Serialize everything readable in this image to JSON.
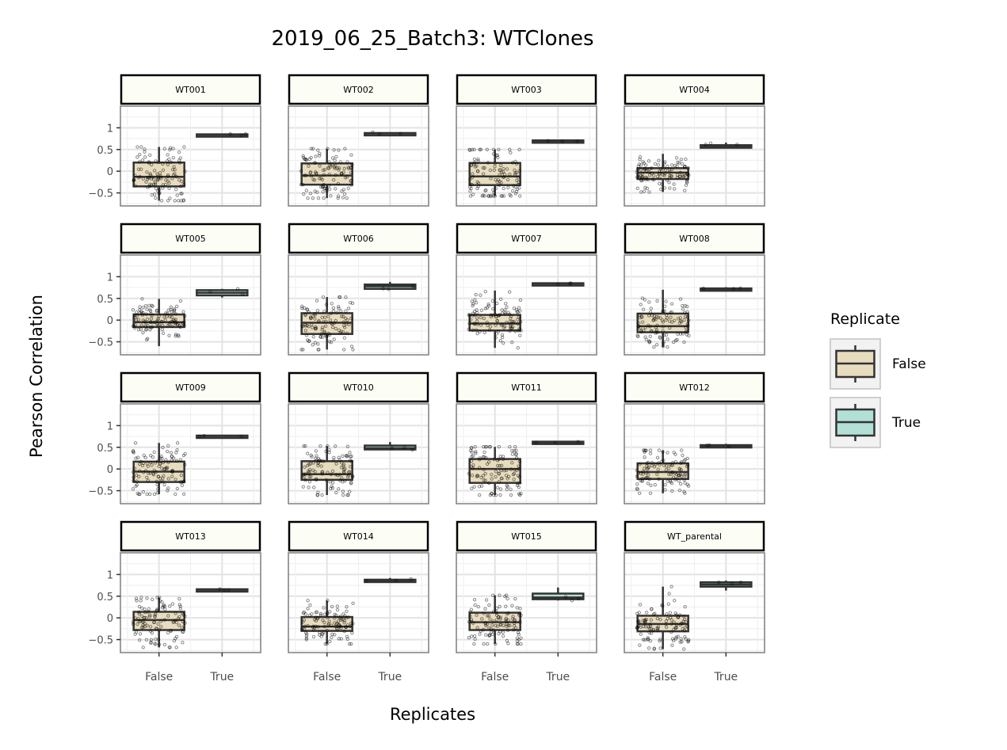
{
  "chart_data": {
    "type": "box",
    "title": "2019_06_25_Batch3: WTClones",
    "xlabel": "Replicates",
    "ylabel": "Pearson Correlation",
    "categories": [
      "False",
      "True"
    ],
    "y_ticks": [
      1,
      0.5,
      0,
      -0.5
    ],
    "y_tick_labels": [
      "1",
      "0.5",
      "0",
      "−0.5"
    ],
    "ylim": [
      -0.8,
      1.5
    ],
    "legend": {
      "title": "Replicate",
      "position": "right",
      "entries": [
        {
          "label": "False",
          "color": "#e8dcbe"
        },
        {
          "label": "True",
          "color": "#b2e0d6"
        }
      ]
    },
    "colors": {
      "False": "#e8dcbe",
      "True": "#b2e0d6",
      "strip_fill": "#fcfdf5",
      "box_line": "#333333"
    },
    "facets": [
      {
        "name": "WT001",
        "false": {
          "min": -0.68,
          "q1": -0.35,
          "median": -0.13,
          "q3": 0.2,
          "max": 0.56
        },
        "true": {
          "min": 0.83,
          "q1": 0.83,
          "median": 0.84,
          "q3": 0.85,
          "max": 0.86
        }
      },
      {
        "name": "WT002",
        "false": {
          "min": -0.62,
          "q1": -0.31,
          "median": -0.1,
          "q3": 0.18,
          "max": 0.52
        },
        "true": {
          "min": 0.86,
          "q1": 0.86,
          "median": 0.87,
          "q3": 0.88,
          "max": 0.9
        }
      },
      {
        "name": "WT003",
        "false": {
          "min": -0.57,
          "q1": -0.32,
          "median": -0.12,
          "q3": 0.19,
          "max": 0.5
        },
        "true": {
          "min": 0.69,
          "q1": 0.69,
          "median": 0.7,
          "q3": 0.71,
          "max": 0.72
        }
      },
      {
        "name": "WT004",
        "false": {
          "min": -0.48,
          "q1": -0.18,
          "median": -0.03,
          "q3": 0.07,
          "max": 0.4
        },
        "true": {
          "min": 0.53,
          "q1": 0.54,
          "median": 0.57,
          "q3": 0.6,
          "max": 0.66
        }
      },
      {
        "name": "WT005",
        "false": {
          "min": -0.6,
          "q1": -0.16,
          "median": -0.05,
          "q3": 0.13,
          "max": 0.49
        },
        "true": {
          "min": 0.52,
          "q1": 0.57,
          "median": 0.63,
          "q3": 0.69,
          "max": 0.72
        }
      },
      {
        "name": "WT006",
        "false": {
          "min": -0.68,
          "q1": -0.32,
          "median": -0.06,
          "q3": 0.16,
          "max": 0.53
        },
        "true": {
          "min": 0.7,
          "q1": 0.72,
          "median": 0.78,
          "q3": 0.82,
          "max": 0.88
        }
      },
      {
        "name": "WT007",
        "false": {
          "min": -0.64,
          "q1": -0.24,
          "median": -0.08,
          "q3": 0.12,
          "max": 0.68
        },
        "true": {
          "min": 0.83,
          "q1": 0.83,
          "median": 0.84,
          "q3": 0.85,
          "max": 0.86
        }
      },
      {
        "name": "WT008",
        "false": {
          "min": -0.62,
          "q1": -0.28,
          "median": -0.14,
          "q3": 0.15,
          "max": 0.7
        },
        "true": {
          "min": 0.7,
          "q1": 0.7,
          "median": 0.71,
          "q3": 0.73,
          "max": 0.76
        }
      },
      {
        "name": "WT009",
        "false": {
          "min": -0.58,
          "q1": -0.3,
          "median": -0.06,
          "q3": 0.17,
          "max": 0.6
        },
        "true": {
          "min": 0.75,
          "q1": 0.75,
          "median": 0.76,
          "q3": 0.77,
          "max": 0.78
        }
      },
      {
        "name": "WT010",
        "false": {
          "min": -0.6,
          "q1": -0.25,
          "median": -0.12,
          "q3": 0.18,
          "max": 0.53
        },
        "true": {
          "min": 0.44,
          "q1": 0.45,
          "median": 0.48,
          "q3": 0.54,
          "max": 0.62
        }
      },
      {
        "name": "WT011",
        "false": {
          "min": -0.6,
          "q1": -0.32,
          "median": 0.0,
          "q3": 0.23,
          "max": 0.51
        },
        "true": {
          "min": 0.61,
          "q1": 0.61,
          "median": 0.62,
          "q3": 0.63,
          "max": 0.65
        }
      },
      {
        "name": "WT012",
        "false": {
          "min": -0.56,
          "q1": -0.23,
          "median": -0.07,
          "q3": 0.13,
          "max": 0.43
        },
        "true": {
          "min": 0.52,
          "q1": 0.52,
          "median": 0.53,
          "q3": 0.55,
          "max": 0.58
        }
      },
      {
        "name": "WT013",
        "false": {
          "min": -0.68,
          "q1": -0.28,
          "median": -0.05,
          "q3": 0.14,
          "max": 0.47
        },
        "true": {
          "min": 0.64,
          "q1": 0.64,
          "median": 0.65,
          "q3": 0.66,
          "max": 0.67
        }
      },
      {
        "name": "WT014",
        "false": {
          "min": -0.6,
          "q1": -0.3,
          "median": -0.2,
          "q3": 0.02,
          "max": 0.4
        },
        "true": {
          "min": 0.84,
          "q1": 0.84,
          "median": 0.86,
          "q3": 0.88,
          "max": 0.92
        }
      },
      {
        "name": "WT015",
        "false": {
          "min": -0.6,
          "q1": -0.28,
          "median": -0.1,
          "q3": 0.12,
          "max": 0.52
        },
        "true": {
          "min": 0.4,
          "q1": 0.43,
          "median": 0.47,
          "q3": 0.56,
          "max": 0.7
        }
      },
      {
        "name": "WT_parental",
        "false": {
          "min": -0.72,
          "q1": -0.31,
          "median": -0.14,
          "q3": 0.05,
          "max": 0.72
        },
        "true": {
          "min": 0.63,
          "q1": 0.72,
          "median": 0.77,
          "q3": 0.82,
          "max": 0.86
        }
      }
    ]
  }
}
